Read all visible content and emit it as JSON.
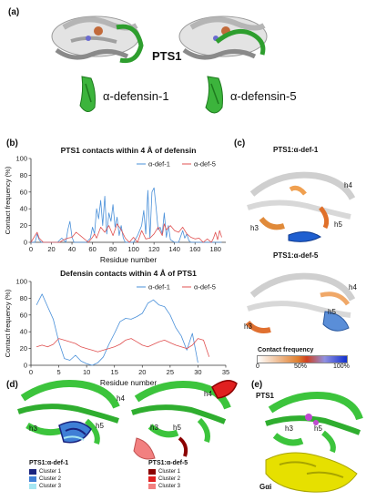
{
  "panels": {
    "a": {
      "label": "(a)",
      "pts1_label": "PTS1",
      "defensin_1_label": "α-defensin-1",
      "defensin_5_label": "α-defensin-5"
    },
    "b": {
      "label": "(b)"
    },
    "c": {
      "label": "(c)",
      "top_title": "PTS1:α-def-1",
      "bottom_title": "PTS1:α-def-5",
      "top_helices": [
        "h4",
        "h3",
        "h5"
      ],
      "bottom_helices": [
        "h4",
        "h3",
        "h5"
      ],
      "colorbar_title": "Contact frequency",
      "colorbar_ticks": [
        "0",
        "50%",
        "100%"
      ]
    },
    "d": {
      "label": "(d)",
      "left_helices": [
        "h4",
        "h3",
        "h5"
      ],
      "right_helices": [
        "h4",
        "h3",
        "h5"
      ],
      "left_legend_title": "PTS1:α-def-1",
      "right_legend_title": "PTS1:α-def-5",
      "left_legend": [
        {
          "label": "Cluster 1",
          "color": "#1a237e"
        },
        {
          "label": "Cluster 2",
          "color": "#3f7fd6"
        },
        {
          "label": "Cluster 3",
          "color": "#a5e6f2"
        }
      ],
      "right_legend": [
        {
          "label": "Cluster 1",
          "color": "#8b0000"
        },
        {
          "label": "Cluster 2",
          "color": "#e02020"
        },
        {
          "label": "Cluster 3",
          "color": "#f28080"
        }
      ]
    },
    "e": {
      "label": "(e)",
      "pts1_label": "PTS1",
      "helices": [
        "h3",
        "h5"
      ],
      "gai_label": "Gαi"
    }
  },
  "colors": {
    "def1": "#4a90d9",
    "def5": "#e05050",
    "pts1_green": "#3cc43c",
    "gai_yellow": "#e6e000"
  },
  "chart_data": [
    {
      "type": "line",
      "title": "PTS1 contacts within 4 Å of defensin",
      "xlabel": "Residue number",
      "ylabel": "Contact frequency (%)",
      "xlim": [
        0,
        190
      ],
      "ylim": [
        0,
        100
      ],
      "xticks": [
        0,
        20,
        40,
        60,
        80,
        100,
        120,
        140,
        160,
        180
      ],
      "yticks": [
        0,
        20,
        40,
        60,
        80,
        100
      ],
      "legend_position": "top-right",
      "series": [
        {
          "name": "α-def-1",
          "color": "#4a90d9",
          "x": [
            0,
            4,
            6,
            8,
            10,
            14,
            18,
            22,
            26,
            30,
            34,
            36,
            38,
            40,
            42,
            44,
            46,
            50,
            54,
            58,
            60,
            62,
            64,
            66,
            68,
            70,
            72,
            74,
            76,
            78,
            80,
            82,
            84,
            86,
            88,
            90,
            92,
            96,
            100,
            104,
            108,
            110,
            112,
            114,
            116,
            118,
            120,
            122,
            124,
            126,
            128,
            130,
            132,
            134,
            136,
            140,
            144,
            148,
            150,
            152,
            154,
            156,
            158,
            160,
            164,
            170,
            176,
            182,
            186
          ],
          "values": [
            0,
            0,
            10,
            3,
            0,
            0,
            0,
            0,
            0,
            5,
            0,
            15,
            25,
            6,
            0,
            0,
            0,
            0,
            0,
            5,
            18,
            10,
            40,
            28,
            50,
            20,
            55,
            10,
            35,
            25,
            45,
            18,
            30,
            8,
            20,
            5,
            0,
            0,
            0,
            8,
            20,
            38,
            10,
            62,
            5,
            60,
            65,
            42,
            15,
            18,
            10,
            35,
            6,
            20,
            3,
            0,
            0,
            14,
            5,
            10,
            2,
            0,
            0,
            0,
            0,
            0,
            0,
            0,
            0
          ]
        },
        {
          "name": "α-def-5",
          "color": "#e05050",
          "x": [
            0,
            4,
            6,
            8,
            12,
            16,
            20,
            24,
            28,
            32,
            36,
            40,
            44,
            48,
            52,
            56,
            58,
            60,
            62,
            64,
            68,
            72,
            76,
            80,
            84,
            88,
            92,
            96,
            100,
            104,
            108,
            112,
            116,
            120,
            124,
            128,
            130,
            132,
            136,
            140,
            144,
            148,
            152,
            156,
            160,
            164,
            168,
            172,
            176,
            178,
            180,
            182,
            184,
            186
          ],
          "values": [
            0,
            8,
            12,
            5,
            0,
            0,
            0,
            0,
            0,
            3,
            5,
            6,
            12,
            8,
            4,
            0,
            3,
            6,
            10,
            5,
            18,
            12,
            20,
            8,
            22,
            15,
            5,
            0,
            6,
            0,
            14,
            4,
            5,
            10,
            18,
            8,
            22,
            15,
            20,
            14,
            12,
            18,
            10,
            6,
            4,
            5,
            0,
            4,
            0,
            5,
            12,
            3,
            14,
            6
          ]
        }
      ]
    },
    {
      "type": "line",
      "title": "Defensin contacts within 4 Å of PTS1",
      "xlabel": "Residue number",
      "ylabel": "Contact frequency (%)",
      "xlim": [
        0,
        35
      ],
      "ylim": [
        0,
        100
      ],
      "xticks": [
        0,
        5,
        10,
        15,
        20,
        25,
        30,
        35
      ],
      "yticks": [
        0,
        20,
        40,
        60,
        80,
        100
      ],
      "legend_position": "top-right",
      "series": [
        {
          "name": "α-def-1",
          "color": "#4a90d9",
          "x": [
            1,
            2,
            3,
            4,
            5,
            6,
            7,
            8,
            9,
            10,
            11,
            12,
            13,
            14,
            15,
            16,
            17,
            18,
            19,
            20,
            21,
            22,
            23,
            24,
            25,
            26,
            27,
            28,
            29,
            30
          ],
          "values": [
            72,
            85,
            70,
            55,
            28,
            8,
            6,
            12,
            5,
            2,
            0,
            3,
            10,
            25,
            38,
            52,
            56,
            55,
            58,
            62,
            74,
            78,
            72,
            70,
            60,
            45,
            35,
            18,
            38,
            3
          ]
        },
        {
          "name": "α-def-5",
          "color": "#e05050",
          "x": [
            1,
            2,
            3,
            4,
            5,
            6,
            7,
            8,
            9,
            10,
            11,
            12,
            13,
            14,
            15,
            16,
            17,
            18,
            19,
            20,
            21,
            22,
            23,
            24,
            25,
            26,
            27,
            28,
            29,
            30,
            31,
            32
          ],
          "values": [
            22,
            24,
            22,
            25,
            32,
            30,
            28,
            26,
            22,
            20,
            18,
            16,
            18,
            20,
            22,
            25,
            30,
            32,
            28,
            24,
            22,
            25,
            28,
            30,
            27,
            24,
            22,
            20,
            24,
            32,
            30,
            10
          ]
        }
      ]
    }
  ]
}
